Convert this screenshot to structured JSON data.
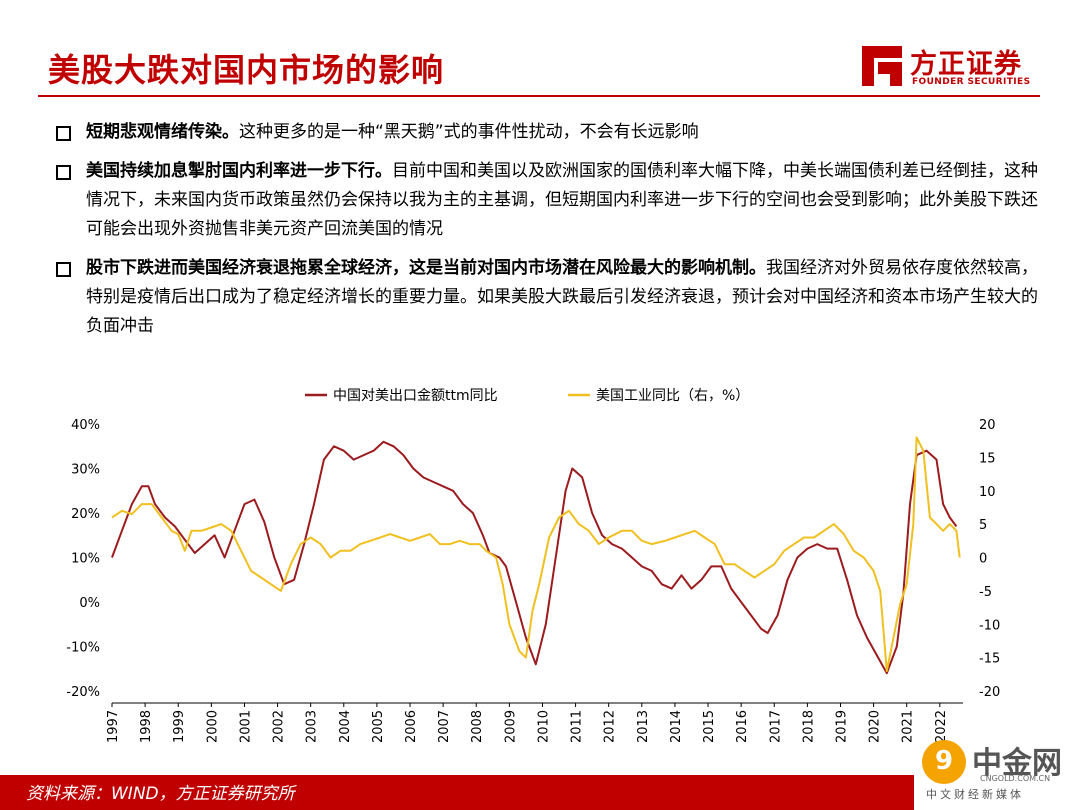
{
  "slide": {
    "title": "美股大跌对国内市场的影响",
    "logo_cn": "方正证券",
    "logo_en": "FOUNDER SECURITIES",
    "brand_color": "#c00000"
  },
  "bullets": [
    {
      "lead": "短期悲观情绪传染。",
      "text": "这种更多的是一种“黑天鹅”式的事件性扰动，不会有长远影响"
    },
    {
      "lead": "美国持续加息掣肘国内利率进一步下行。",
      "text": "目前中国和美国以及欧洲国家的国债利率大幅下降，中美长端国债利差已经倒挂，这种情况下，未来国内货币政策虽然仍会保持以我为主的主基调，但短期国内利率进一步下行的空间也会受到影响；此外美股下跌还可能会出现外资抛售非美元资产回流美国的情况"
    },
    {
      "lead": "股市下跌进而美国经济衰退拖累全球经济，这是当前对国内市场潜在风险最大的影响机制。",
      "text": "我国经济对外贸易依存度依然较高，特别是疫情后出口成为了稳定经济增长的重要力量。如果美股大跌最后引发经济衰退，预计会对中国经济和资本市场产生较大的负面冲击"
    }
  ],
  "footer": {
    "source": "资料来源：WIND，方正证券研究所"
  },
  "watermark": {
    "glyph": "9",
    "cn": "中金网",
    "url": "CNGOLD.COM.CN",
    "sub": "中文财经新媒体"
  },
  "chart_data": {
    "type": "line",
    "title": "",
    "xlabel": "",
    "ylabel": "",
    "legend_position": "top",
    "grid": false,
    "x_ticks": [
      "1997",
      "1998",
      "1999",
      "2000",
      "2001",
      "2002",
      "2003",
      "2004",
      "2005",
      "2006",
      "2007",
      "2008",
      "2009",
      "2010",
      "2011",
      "2012",
      "2013",
      "2014",
      "2015",
      "2016",
      "2017",
      "2018",
      "2019",
      "2020",
      "2021",
      "2022"
    ],
    "x_range": [
      1997,
      2022.7
    ],
    "y_left": {
      "range": [
        -20,
        40
      ],
      "ticks": [
        "40%",
        "30%",
        "20%",
        "10%",
        "0%",
        "-10%",
        "-20%"
      ],
      "tick_values": [
        40,
        30,
        20,
        10,
        0,
        -10,
        -20
      ]
    },
    "y_right": {
      "range": [
        -20,
        20
      ],
      "ticks": [
        "20",
        "15",
        "10",
        "5",
        "0",
        "-5",
        "-10",
        "-15",
        "-20"
      ],
      "tick_values": [
        20,
        15,
        10,
        5,
        0,
        -5,
        -10,
        -15,
        -20
      ]
    },
    "series": [
      {
        "name": "中国对美出口金额ttm同比",
        "axis": "left",
        "color": "#9b1b1e",
        "points": [
          [
            1997.0,
            10
          ],
          [
            1997.3,
            16
          ],
          [
            1997.6,
            22
          ],
          [
            1997.9,
            26
          ],
          [
            1998.1,
            26
          ],
          [
            1998.3,
            22
          ],
          [
            1998.6,
            19
          ],
          [
            1998.9,
            17
          ],
          [
            1999.2,
            14
          ],
          [
            1999.5,
            11
          ],
          [
            1999.8,
            13
          ],
          [
            2000.1,
            15
          ],
          [
            2000.4,
            10
          ],
          [
            2000.7,
            16
          ],
          [
            2001.0,
            22
          ],
          [
            2001.3,
            23
          ],
          [
            2001.6,
            18
          ],
          [
            2001.9,
            10
          ],
          [
            2002.2,
            4
          ],
          [
            2002.5,
            5
          ],
          [
            2002.8,
            13
          ],
          [
            2003.1,
            22
          ],
          [
            2003.4,
            32
          ],
          [
            2003.7,
            35
          ],
          [
            2004.0,
            34
          ],
          [
            2004.3,
            32
          ],
          [
            2004.6,
            33
          ],
          [
            2004.9,
            34
          ],
          [
            2005.2,
            36
          ],
          [
            2005.5,
            35
          ],
          [
            2005.8,
            33
          ],
          [
            2006.1,
            30
          ],
          [
            2006.4,
            28
          ],
          [
            2006.7,
            27
          ],
          [
            2007.0,
            26
          ],
          [
            2007.3,
            25
          ],
          [
            2007.6,
            22
          ],
          [
            2007.9,
            20
          ],
          [
            2008.2,
            15
          ],
          [
            2008.4,
            11
          ],
          [
            2008.7,
            10
          ],
          [
            2008.9,
            8
          ],
          [
            2009.2,
            0
          ],
          [
            2009.5,
            -8
          ],
          [
            2009.8,
            -14
          ],
          [
            2010.1,
            -5
          ],
          [
            2010.4,
            10
          ],
          [
            2010.7,
            25
          ],
          [
            2010.9,
            30
          ],
          [
            2011.2,
            28
          ],
          [
            2011.5,
            20
          ],
          [
            2011.8,
            15
          ],
          [
            2012.1,
            13
          ],
          [
            2012.4,
            12
          ],
          [
            2012.7,
            10
          ],
          [
            2013.0,
            8
          ],
          [
            2013.3,
            7
          ],
          [
            2013.6,
            4
          ],
          [
            2013.9,
            3
          ],
          [
            2014.2,
            6
          ],
          [
            2014.5,
            3
          ],
          [
            2014.8,
            5
          ],
          [
            2015.1,
            8
          ],
          [
            2015.4,
            8
          ],
          [
            2015.7,
            3
          ],
          [
            2016.0,
            0
          ],
          [
            2016.3,
            -3
          ],
          [
            2016.6,
            -6
          ],
          [
            2016.8,
            -7
          ],
          [
            2017.1,
            -3
          ],
          [
            2017.4,
            5
          ],
          [
            2017.7,
            10
          ],
          [
            2018.0,
            12
          ],
          [
            2018.3,
            13
          ],
          [
            2018.6,
            12
          ],
          [
            2018.9,
            12
          ],
          [
            2019.2,
            5
          ],
          [
            2019.5,
            -3
          ],
          [
            2019.8,
            -8
          ],
          [
            2020.1,
            -12
          ],
          [
            2020.4,
            -16
          ],
          [
            2020.7,
            -10
          ],
          [
            2020.9,
            2
          ],
          [
            2021.1,
            22
          ],
          [
            2021.3,
            33
          ],
          [
            2021.6,
            34
          ],
          [
            2021.9,
            32
          ],
          [
            2022.1,
            22
          ],
          [
            2022.3,
            19
          ],
          [
            2022.5,
            17
          ]
        ]
      },
      {
        "name": "美国工业同比（右，%）",
        "axis": "right",
        "color": "#f0c020",
        "points": [
          [
            1997.0,
            6
          ],
          [
            1997.3,
            7
          ],
          [
            1997.6,
            6.5
          ],
          [
            1997.9,
            8
          ],
          [
            1998.2,
            8
          ],
          [
            1998.5,
            6
          ],
          [
            1998.8,
            4
          ],
          [
            1999.0,
            3.5
          ],
          [
            1999.2,
            1
          ],
          [
            1999.4,
            4
          ],
          [
            1999.7,
            4
          ],
          [
            2000.0,
            4.5
          ],
          [
            2000.3,
            5
          ],
          [
            2000.6,
            4
          ],
          [
            2000.9,
            1
          ],
          [
            2001.2,
            -2
          ],
          [
            2001.5,
            -3
          ],
          [
            2001.8,
            -4
          ],
          [
            2002.1,
            -5
          ],
          [
            2002.4,
            -1
          ],
          [
            2002.7,
            2
          ],
          [
            2003.0,
            3
          ],
          [
            2003.3,
            2
          ],
          [
            2003.6,
            0
          ],
          [
            2003.9,
            1
          ],
          [
            2004.2,
            1
          ],
          [
            2004.5,
            2
          ],
          [
            2004.8,
            2.5
          ],
          [
            2005.1,
            3
          ],
          [
            2005.4,
            3.5
          ],
          [
            2005.7,
            3
          ],
          [
            2006.0,
            2.5
          ],
          [
            2006.3,
            3
          ],
          [
            2006.6,
            3.5
          ],
          [
            2006.9,
            2
          ],
          [
            2007.2,
            2
          ],
          [
            2007.5,
            2.5
          ],
          [
            2007.8,
            2
          ],
          [
            2008.1,
            2
          ],
          [
            2008.3,
            1
          ],
          [
            2008.6,
            0
          ],
          [
            2008.8,
            -4
          ],
          [
            2009.0,
            -10
          ],
          [
            2009.3,
            -14
          ],
          [
            2009.5,
            -15
          ],
          [
            2009.7,
            -8
          ],
          [
            2009.9,
            -4
          ],
          [
            2010.2,
            3
          ],
          [
            2010.5,
            6
          ],
          [
            2010.8,
            7
          ],
          [
            2011.1,
            5
          ],
          [
            2011.4,
            4
          ],
          [
            2011.7,
            2
          ],
          [
            2012.0,
            3
          ],
          [
            2012.4,
            4
          ],
          [
            2012.7,
            4
          ],
          [
            2013.0,
            2.5
          ],
          [
            2013.3,
            2
          ],
          [
            2013.7,
            2.5
          ],
          [
            2014.0,
            3
          ],
          [
            2014.3,
            3.5
          ],
          [
            2014.6,
            4
          ],
          [
            2014.9,
            3
          ],
          [
            2015.2,
            2
          ],
          [
            2015.5,
            -1
          ],
          [
            2015.8,
            -1
          ],
          [
            2016.1,
            -2
          ],
          [
            2016.4,
            -3
          ],
          [
            2016.7,
            -2
          ],
          [
            2017.0,
            -1
          ],
          [
            2017.3,
            1
          ],
          [
            2017.6,
            2
          ],
          [
            2017.9,
            3
          ],
          [
            2018.2,
            3
          ],
          [
            2018.5,
            4
          ],
          [
            2018.8,
            5
          ],
          [
            2019.1,
            3.5
          ],
          [
            2019.4,
            1
          ],
          [
            2019.7,
            0
          ],
          [
            2020.0,
            -2
          ],
          [
            2020.2,
            -5
          ],
          [
            2020.4,
            -17
          ],
          [
            2020.6,
            -12
          ],
          [
            2020.8,
            -7
          ],
          [
            2021.0,
            -4
          ],
          [
            2021.2,
            5
          ],
          [
            2021.3,
            18
          ],
          [
            2021.5,
            16
          ],
          [
            2021.7,
            6
          ],
          [
            2021.9,
            5
          ],
          [
            2022.1,
            4
          ],
          [
            2022.3,
            5
          ],
          [
            2022.5,
            4
          ],
          [
            2022.6,
            0
          ]
        ]
      }
    ]
  }
}
